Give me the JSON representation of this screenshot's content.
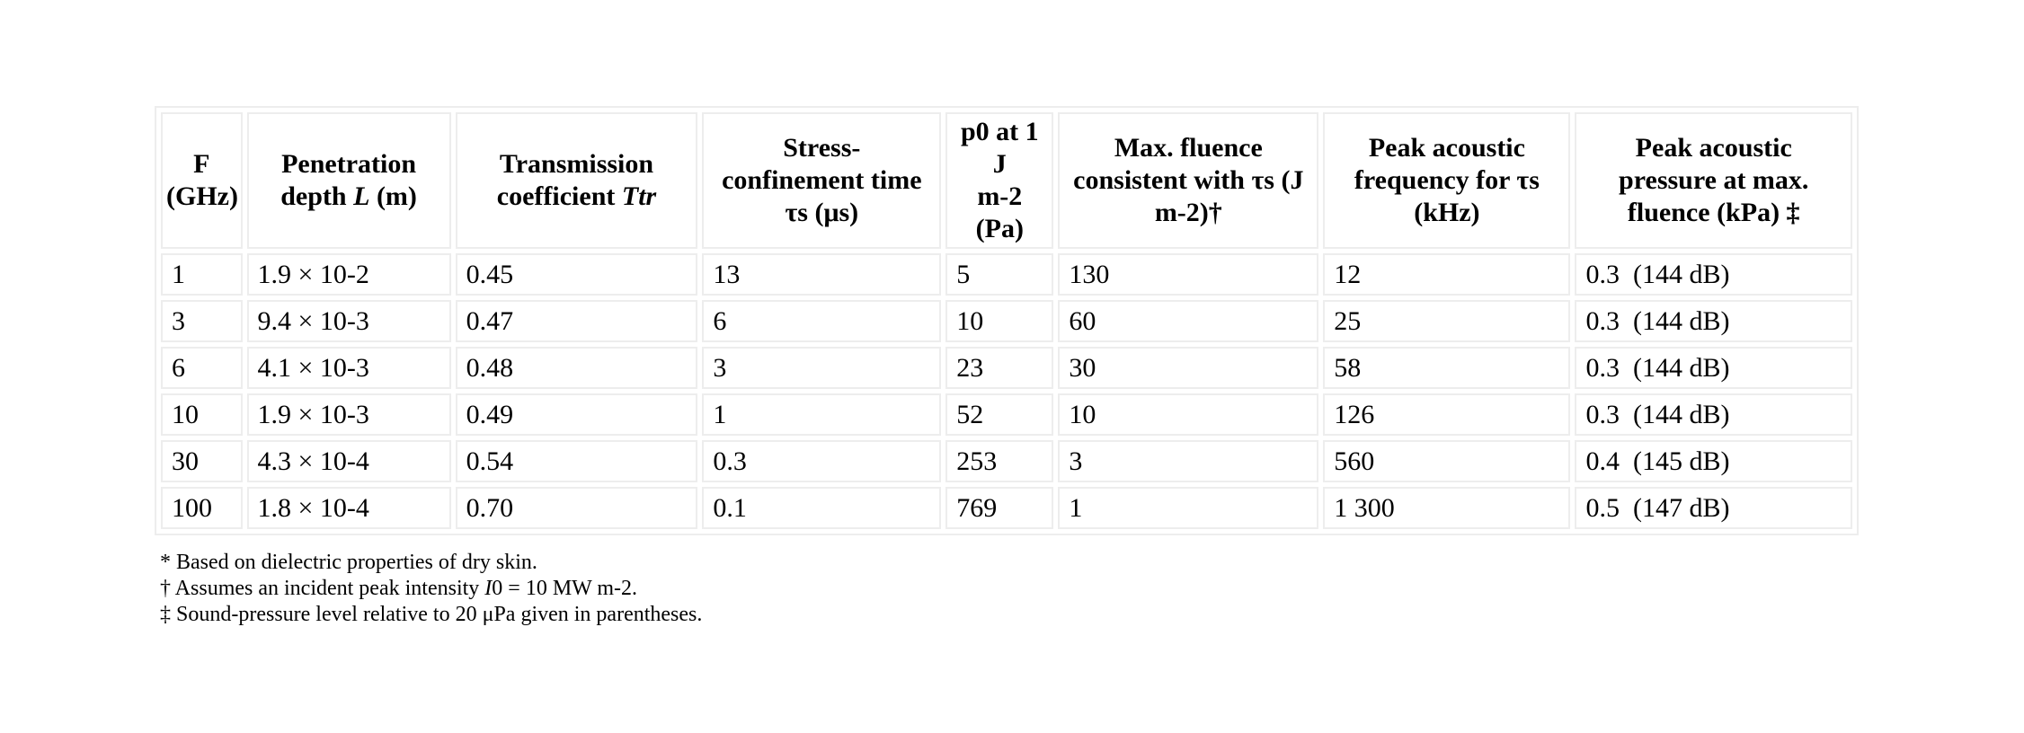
{
  "colors": {
    "border": "#ededed",
    "text": "#000000",
    "background": "#ffffff"
  },
  "table": {
    "header": [
      {
        "id": "f-ghz",
        "lines": [
          [
            {
              "t": "F"
            }
          ],
          [
            {
              "t": "(GHz)"
            }
          ]
        ]
      },
      {
        "id": "penetration-depth",
        "lines": [
          [
            {
              "t": "Penetration"
            }
          ],
          [
            {
              "t": "depth "
            },
            {
              "t": "L",
              "italic": true
            },
            {
              "t": " (m)"
            }
          ]
        ]
      },
      {
        "id": "transmission-coefficient",
        "lines": [
          [
            {
              "t": "Transmission"
            }
          ],
          [
            {
              "t": "coefficient "
            },
            {
              "t": "Ttr",
              "italic": true
            }
          ]
        ]
      },
      {
        "id": "stress-confinement-time",
        "lines": [
          [
            {
              "t": "Stress-"
            }
          ],
          [
            {
              "t": "confinement time"
            }
          ],
          [
            {
              "t": "τs (μs)"
            }
          ]
        ]
      },
      {
        "id": "p0-at-1-j-m2",
        "lines": [
          [
            {
              "t": "p0 at 1 J"
            }
          ],
          [
            {
              "t": "m-2 (Pa)"
            }
          ]
        ]
      },
      {
        "id": "max-fluence",
        "lines": [
          [
            {
              "t": "Max. fluence"
            }
          ],
          [
            {
              "t": "consistent with τs (J"
            }
          ],
          [
            {
              "t": "m-2)†"
            }
          ]
        ]
      },
      {
        "id": "peak-acoustic-frequency",
        "lines": [
          [
            {
              "t": "Peak acoustic"
            }
          ],
          [
            {
              "t": "frequency for τs"
            }
          ],
          [
            {
              "t": "(kHz)"
            }
          ]
        ]
      },
      {
        "id": "peak-acoustic-pressure",
        "lines": [
          [
            {
              "t": "Peak acoustic"
            }
          ],
          [
            {
              "t": "pressure at max."
            }
          ],
          [
            {
              "t": "fluence (kPa) ‡"
            }
          ]
        ]
      }
    ],
    "rows": [
      [
        "1",
        "1.9 × 10-2",
        "0.45",
        "13",
        "5",
        "130",
        "12",
        "0.3  (144 dB)"
      ],
      [
        "3",
        "9.4 × 10-3",
        "0.47",
        "6",
        "10",
        "60",
        "25",
        "0.3  (144 dB)"
      ],
      [
        "6",
        "4.1 × 10-3",
        "0.48",
        "3",
        "23",
        "30",
        "58",
        "0.3  (144 dB)"
      ],
      [
        "10",
        "1.9 × 10-3",
        "0.49",
        "1",
        "52",
        "10",
        "126",
        "0.3  (144 dB)"
      ],
      [
        "30",
        "4.3 × 10-4",
        "0.54",
        "0.3",
        "253",
        "3",
        "560",
        "0.4  (145 dB)"
      ],
      [
        "100",
        "1.8 × 10-4",
        "0.70",
        "0.1",
        "769",
        "1",
        "1 300",
        "0.5  (147 dB)"
      ]
    ]
  },
  "footnotes": [
    {
      "segments": [
        {
          "t": "* Based on dielectric properties of dry skin."
        }
      ]
    },
    {
      "segments": [
        {
          "t": "† Assumes an incident peak intensity "
        },
        {
          "t": "I",
          "italic": true
        },
        {
          "t": "0 = 10 MW m-2."
        }
      ]
    },
    {
      "segments": [
        {
          "t": "‡ Sound-pressure level relative to 20 μPa given in parentheses."
        }
      ]
    }
  ]
}
